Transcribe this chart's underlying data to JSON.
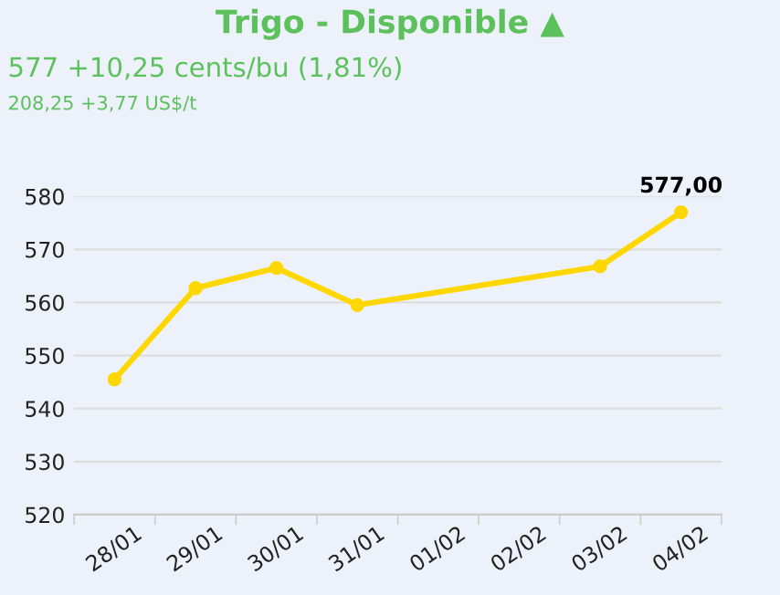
{
  "chart_data": {
    "type": "line",
    "title": "Trigo - Disponible ▲",
    "subtitle": "577 +10,25 cents/bu (1,81%)",
    "annotations": [
      "208,25 +3,77 US$/t"
    ],
    "categories": [
      "28/01",
      "29/01",
      "30/01",
      "31/01",
      "01/02",
      "02/02",
      "03/02",
      "04/02"
    ],
    "series": [
      {
        "color": "#ffd700",
        "values": [
          545.5,
          562.7,
          566.5,
          559.5,
          null,
          null,
          566.8,
          577.0
        ],
        "value_labels": [
          null,
          null,
          null,
          null,
          null,
          null,
          null,
          "577,00"
        ]
      }
    ],
    "ylim": [
      520,
      580
    ],
    "yticks": [
      520,
      530,
      540,
      550,
      560,
      570,
      580
    ],
    "grid": "y",
    "marker": "circle",
    "line_style": "solid",
    "legend": false
  }
}
